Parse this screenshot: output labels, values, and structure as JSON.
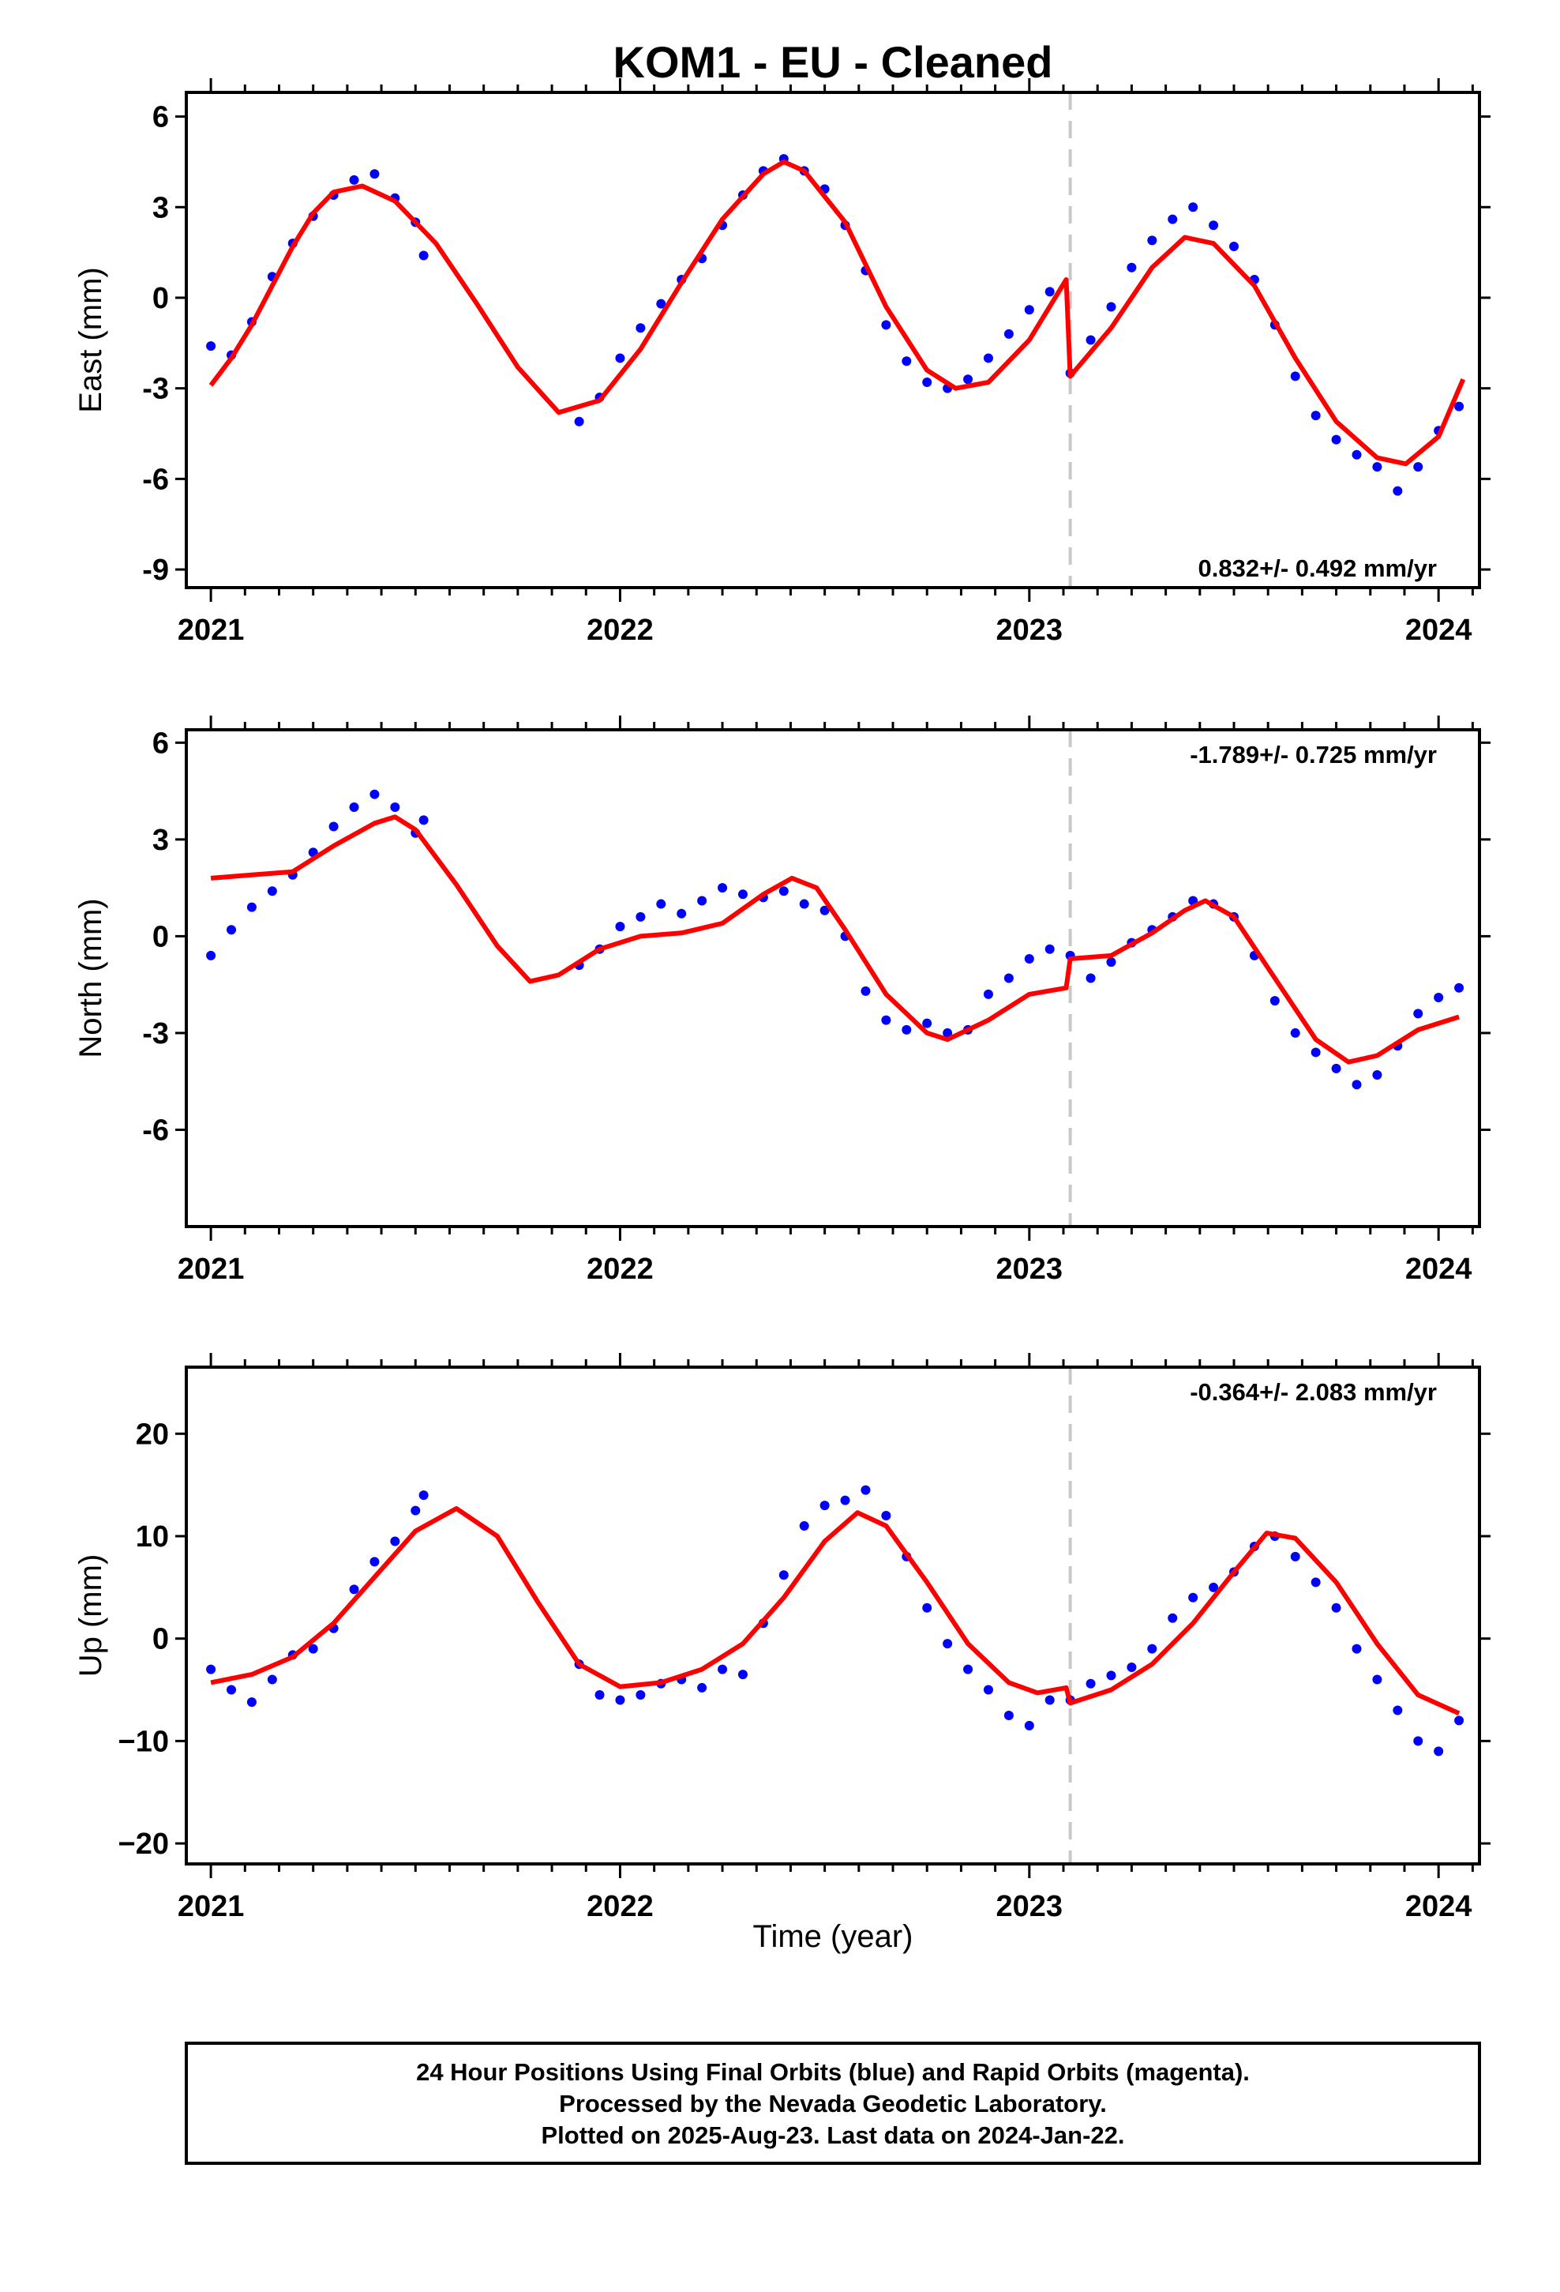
{
  "title": "KOM1  - EU - Cleaned",
  "colors": {
    "final": "#0000ff",
    "model": "#ff0000",
    "event": "#c8c8c8",
    "frame": "#000000"
  },
  "footer": {
    "lines": [
      "24 Hour Positions Using Final Orbits (blue) and Rapid Orbits (magenta).",
      "Processed by the Nevada Geodetic Laboratory.",
      "Plotted on 2025-Aug-23. Last data on 2024-Jan-22."
    ]
  },
  "chart_data": [
    {
      "type": "scatter",
      "ylabel": "East (mm)",
      "xlabel": "",
      "xlim": [
        2020.94,
        2024.1
      ],
      "ylim": [
        -9.6,
        6.8
      ],
      "yticks": [
        "6",
        "3",
        "0",
        "-3",
        "-6",
        "-9"
      ],
      "ytick_values": [
        6,
        3,
        0,
        -3,
        -6,
        -9
      ],
      "xticks": [
        "2021",
        "2022",
        "2023",
        "2024"
      ],
      "xtick_values": [
        2021,
        2022,
        2023,
        2024
      ],
      "event_x": 2023.1,
      "rate_label": "0.832+/- 0.492 mm/yr",
      "rate_position": "bottom-right",
      "points": [
        [
          2021.0,
          -1.6
        ],
        [
          2021.05,
          -1.9
        ],
        [
          2021.1,
          -0.8
        ],
        [
          2021.15,
          0.7
        ],
        [
          2021.2,
          1.8
        ],
        [
          2021.25,
          2.7
        ],
        [
          2021.3,
          3.4
        ],
        [
          2021.35,
          3.9
        ],
        [
          2021.4,
          4.1
        ],
        [
          2021.45,
          3.3
        ],
        [
          2021.5,
          2.5
        ],
        [
          2021.52,
          1.4
        ],
        [
          2021.9,
          -4.1
        ],
        [
          2021.95,
          -3.3
        ],
        [
          2022.0,
          -2.0
        ],
        [
          2022.05,
          -1.0
        ],
        [
          2022.1,
          -0.2
        ],
        [
          2022.15,
          0.6
        ],
        [
          2022.2,
          1.3
        ],
        [
          2022.25,
          2.4
        ],
        [
          2022.3,
          3.4
        ],
        [
          2022.35,
          4.2
        ],
        [
          2022.4,
          4.6
        ],
        [
          2022.45,
          4.2
        ],
        [
          2022.5,
          3.6
        ],
        [
          2022.55,
          2.4
        ],
        [
          2022.6,
          0.9
        ],
        [
          2022.65,
          -0.9
        ],
        [
          2022.7,
          -2.1
        ],
        [
          2022.75,
          -2.8
        ],
        [
          2022.8,
          -3.0
        ],
        [
          2022.85,
          -2.7
        ],
        [
          2022.9,
          -2.0
        ],
        [
          2022.95,
          -1.2
        ],
        [
          2023.0,
          -0.4
        ],
        [
          2023.05,
          0.2
        ],
        [
          2023.1,
          -2.5
        ],
        [
          2023.15,
          -1.4
        ],
        [
          2023.2,
          -0.3
        ],
        [
          2023.25,
          1.0
        ],
        [
          2023.3,
          1.9
        ],
        [
          2023.35,
          2.6
        ],
        [
          2023.4,
          3.0
        ],
        [
          2023.45,
          2.4
        ],
        [
          2023.5,
          1.7
        ],
        [
          2023.55,
          0.6
        ],
        [
          2023.6,
          -0.9
        ],
        [
          2023.65,
          -2.6
        ],
        [
          2023.7,
          -3.9
        ],
        [
          2023.75,
          -4.7
        ],
        [
          2023.8,
          -5.2
        ],
        [
          2023.85,
          -5.6
        ],
        [
          2023.9,
          -6.4
        ],
        [
          2023.95,
          -5.6
        ],
        [
          2024.0,
          -4.4
        ],
        [
          2024.05,
          -3.6
        ]
      ],
      "model": [
        [
          2021.0,
          -2.9
        ],
        [
          2021.05,
          -2.0
        ],
        [
          2021.1,
          -0.9
        ],
        [
          2021.15,
          0.4
        ],
        [
          2021.2,
          1.7
        ],
        [
          2021.25,
          2.8
        ],
        [
          2021.3,
          3.5
        ],
        [
          2021.37,
          3.7
        ],
        [
          2021.45,
          3.2
        ],
        [
          2021.55,
          1.8
        ],
        [
          2021.65,
          -0.2
        ],
        [
          2021.75,
          -2.3
        ],
        [
          2021.85,
          -3.8
        ],
        [
          2021.95,
          -3.4
        ],
        [
          2022.05,
          -1.7
        ],
        [
          2022.15,
          0.5
        ],
        [
          2022.25,
          2.6
        ],
        [
          2022.35,
          4.1
        ],
        [
          2022.4,
          4.5
        ],
        [
          2022.45,
          4.2
        ],
        [
          2022.55,
          2.5
        ],
        [
          2022.65,
          -0.3
        ],
        [
          2022.75,
          -2.4
        ],
        [
          2022.82,
          -3.0
        ],
        [
          2022.9,
          -2.8
        ],
        [
          2023.0,
          -1.4
        ],
        [
          2023.09,
          0.6
        ],
        [
          2023.1,
          -2.6
        ],
        [
          2023.2,
          -1.0
        ],
        [
          2023.3,
          1.0
        ],
        [
          2023.38,
          2.0
        ],
        [
          2023.45,
          1.8
        ],
        [
          2023.55,
          0.4
        ],
        [
          2023.65,
          -2.0
        ],
        [
          2023.75,
          -4.1
        ],
        [
          2023.85,
          -5.3
        ],
        [
          2023.92,
          -5.5
        ],
        [
          2024.0,
          -4.6
        ],
        [
          2024.06,
          -2.7
        ]
      ]
    },
    {
      "type": "scatter",
      "ylabel": "North (mm)",
      "xlabel": "",
      "xlim": [
        2020.94,
        2024.1
      ],
      "ylim": [
        -9.0,
        6.4
      ],
      "yticks": [
        "6",
        "3",
        "0",
        "-3",
        "-6"
      ],
      "ytick_values": [
        6,
        3,
        0,
        -3,
        -6
      ],
      "xticks": [
        "2021",
        "2022",
        "2023",
        "2024"
      ],
      "xtick_values": [
        2021,
        2022,
        2023,
        2024
      ],
      "event_x": 2023.1,
      "rate_label": "-1.789+/- 0.725 mm/yr",
      "rate_position": "top-right",
      "points": [
        [
          2021.0,
          -0.6
        ],
        [
          2021.05,
          0.2
        ],
        [
          2021.1,
          0.9
        ],
        [
          2021.15,
          1.4
        ],
        [
          2021.2,
          1.9
        ],
        [
          2021.25,
          2.6
        ],
        [
          2021.3,
          3.4
        ],
        [
          2021.35,
          4.0
        ],
        [
          2021.4,
          4.4
        ],
        [
          2021.45,
          4.0
        ],
        [
          2021.5,
          3.2
        ],
        [
          2021.52,
          3.6
        ],
        [
          2021.9,
          -0.9
        ],
        [
          2021.95,
          -0.4
        ],
        [
          2022.0,
          0.3
        ],
        [
          2022.05,
          0.6
        ],
        [
          2022.1,
          1.0
        ],
        [
          2022.15,
          0.7
        ],
        [
          2022.2,
          1.1
        ],
        [
          2022.25,
          1.5
        ],
        [
          2022.3,
          1.3
        ],
        [
          2022.35,
          1.2
        ],
        [
          2022.4,
          1.4
        ],
        [
          2022.45,
          1.0
        ],
        [
          2022.5,
          0.8
        ],
        [
          2022.55,
          0.0
        ],
        [
          2022.6,
          -1.7
        ],
        [
          2022.65,
          -2.6
        ],
        [
          2022.7,
          -2.9
        ],
        [
          2022.75,
          -2.7
        ],
        [
          2022.8,
          -3.0
        ],
        [
          2022.85,
          -2.9
        ],
        [
          2022.9,
          -1.8
        ],
        [
          2022.95,
          -1.3
        ],
        [
          2023.0,
          -0.7
        ],
        [
          2023.05,
          -0.4
        ],
        [
          2023.1,
          -0.6
        ],
        [
          2023.15,
          -1.3
        ],
        [
          2023.2,
          -0.8
        ],
        [
          2023.25,
          -0.2
        ],
        [
          2023.3,
          0.2
        ],
        [
          2023.35,
          0.6
        ],
        [
          2023.4,
          1.1
        ],
        [
          2023.45,
          1.0
        ],
        [
          2023.5,
          0.6
        ],
        [
          2023.55,
          -0.6
        ],
        [
          2023.6,
          -2.0
        ],
        [
          2023.65,
          -3.0
        ],
        [
          2023.7,
          -3.6
        ],
        [
          2023.75,
          -4.1
        ],
        [
          2023.8,
          -4.6
        ],
        [
          2023.85,
          -4.3
        ],
        [
          2023.9,
          -3.4
        ],
        [
          2023.95,
          -2.4
        ],
        [
          2024.0,
          -1.9
        ],
        [
          2024.05,
          -1.6
        ]
      ],
      "model": [
        [
          2021.0,
          1.8
        ],
        [
          2021.1,
          1.9
        ],
        [
          2021.2,
          2.0
        ],
        [
          2021.3,
          2.8
        ],
        [
          2021.4,
          3.5
        ],
        [
          2021.45,
          3.7
        ],
        [
          2021.5,
          3.3
        ],
        [
          2021.6,
          1.6
        ],
        [
          2021.7,
          -0.3
        ],
        [
          2021.78,
          -1.4
        ],
        [
          2021.85,
          -1.2
        ],
        [
          2021.95,
          -0.4
        ],
        [
          2022.05,
          0.0
        ],
        [
          2022.15,
          0.1
        ],
        [
          2022.25,
          0.4
        ],
        [
          2022.35,
          1.3
        ],
        [
          2022.42,
          1.8
        ],
        [
          2022.48,
          1.5
        ],
        [
          2022.55,
          0.2
        ],
        [
          2022.65,
          -1.8
        ],
        [
          2022.75,
          -3.0
        ],
        [
          2022.8,
          -3.2
        ],
        [
          2022.9,
          -2.6
        ],
        [
          2023.0,
          -1.8
        ],
        [
          2023.09,
          -1.6
        ],
        [
          2023.1,
          -0.7
        ],
        [
          2023.2,
          -0.6
        ],
        [
          2023.3,
          0.1
        ],
        [
          2023.38,
          0.8
        ],
        [
          2023.43,
          1.1
        ],
        [
          2023.5,
          0.6
        ],
        [
          2023.6,
          -1.3
        ],
        [
          2023.7,
          -3.2
        ],
        [
          2023.78,
          -3.9
        ],
        [
          2023.85,
          -3.7
        ],
        [
          2023.95,
          -2.9
        ],
        [
          2024.05,
          -2.5
        ]
      ]
    },
    {
      "type": "scatter",
      "ylabel": "Up (mm)",
      "xlabel": "Time (year)",
      "xlim": [
        2020.94,
        2024.1
      ],
      "ylim": [
        -22.0,
        26.5
      ],
      "yticks": [
        "20",
        "10",
        "0",
        "−10",
        "−20"
      ],
      "ytick_values": [
        20,
        10,
        0,
        -10,
        -20
      ],
      "xticks": [
        "2021",
        "2022",
        "2023",
        "2024"
      ],
      "xtick_values": [
        2021,
        2022,
        2023,
        2024
      ],
      "event_x": 2023.1,
      "rate_label": "-0.364+/- 2.083 mm/yr",
      "rate_position": "top-right",
      "points": [
        [
          2021.0,
          -3.0
        ],
        [
          2021.05,
          -5.0
        ],
        [
          2021.1,
          -6.2
        ],
        [
          2021.15,
          -4.0
        ],
        [
          2021.2,
          -1.6
        ],
        [
          2021.25,
          -1.0
        ],
        [
          2021.3,
          1.0
        ],
        [
          2021.35,
          4.8
        ],
        [
          2021.4,
          7.5
        ],
        [
          2021.45,
          9.5
        ],
        [
          2021.5,
          12.5
        ],
        [
          2021.52,
          14.0
        ],
        [
          2021.9,
          -2.5
        ],
        [
          2021.95,
          -5.5
        ],
        [
          2022.0,
          -6.0
        ],
        [
          2022.05,
          -5.5
        ],
        [
          2022.1,
          -4.4
        ],
        [
          2022.15,
          -4.0
        ],
        [
          2022.2,
          -4.8
        ],
        [
          2022.25,
          -3.0
        ],
        [
          2022.3,
          -3.5
        ],
        [
          2022.35,
          1.5
        ],
        [
          2022.4,
          6.2
        ],
        [
          2022.45,
          11.0
        ],
        [
          2022.5,
          13.0
        ],
        [
          2022.55,
          13.5
        ],
        [
          2022.6,
          14.5
        ],
        [
          2022.65,
          12.0
        ],
        [
          2022.7,
          8.0
        ],
        [
          2022.75,
          3.0
        ],
        [
          2022.8,
          -0.5
        ],
        [
          2022.85,
          -3.0
        ],
        [
          2022.9,
          -5.0
        ],
        [
          2022.95,
          -7.5
        ],
        [
          2023.0,
          -8.5
        ],
        [
          2023.05,
          -6.0
        ],
        [
          2023.1,
          -6.0
        ],
        [
          2023.15,
          -4.4
        ],
        [
          2023.2,
          -3.6
        ],
        [
          2023.25,
          -2.8
        ],
        [
          2023.3,
          -1.0
        ],
        [
          2023.35,
          2.0
        ],
        [
          2023.4,
          4.0
        ],
        [
          2023.45,
          5.0
        ],
        [
          2023.5,
          6.5
        ],
        [
          2023.55,
          9.0
        ],
        [
          2023.6,
          10.0
        ],
        [
          2023.65,
          8.0
        ],
        [
          2023.7,
          5.5
        ],
        [
          2023.75,
          3.0
        ],
        [
          2023.8,
          -1.0
        ],
        [
          2023.85,
          -4.0
        ],
        [
          2023.9,
          -7.0
        ],
        [
          2023.95,
          -10.0
        ],
        [
          2024.0,
          -11.0
        ],
        [
          2024.05,
          -8.0
        ]
      ],
      "model": [
        [
          2021.0,
          -4.3
        ],
        [
          2021.1,
          -3.5
        ],
        [
          2021.2,
          -1.8
        ],
        [
          2021.3,
          1.5
        ],
        [
          2021.4,
          6.0
        ],
        [
          2021.5,
          10.5
        ],
        [
          2021.6,
          12.7
        ],
        [
          2021.7,
          10.0
        ],
        [
          2021.8,
          3.5
        ],
        [
          2021.9,
          -2.5
        ],
        [
          2022.0,
          -4.7
        ],
        [
          2022.1,
          -4.3
        ],
        [
          2022.2,
          -3.0
        ],
        [
          2022.3,
          -0.5
        ],
        [
          2022.4,
          4.0
        ],
        [
          2022.5,
          9.5
        ],
        [
          2022.58,
          12.3
        ],
        [
          2022.65,
          11.0
        ],
        [
          2022.75,
          5.5
        ],
        [
          2022.85,
          -0.5
        ],
        [
          2022.95,
          -4.3
        ],
        [
          2023.02,
          -5.3
        ],
        [
          2023.09,
          -4.8
        ],
        [
          2023.1,
          -6.3
        ],
        [
          2023.2,
          -5.0
        ],
        [
          2023.3,
          -2.5
        ],
        [
          2023.4,
          1.5
        ],
        [
          2023.5,
          6.5
        ],
        [
          2023.58,
          10.3
        ],
        [
          2023.65,
          9.8
        ],
        [
          2023.75,
          5.5
        ],
        [
          2023.85,
          -0.5
        ],
        [
          2023.95,
          -5.5
        ],
        [
          2024.05,
          -7.3
        ]
      ]
    }
  ]
}
